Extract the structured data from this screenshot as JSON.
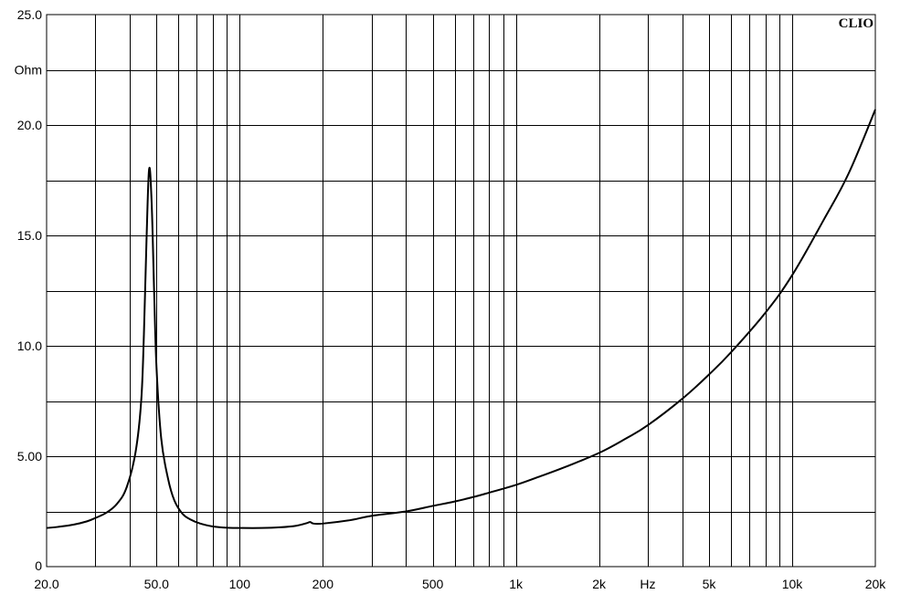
{
  "chart_data": {
    "type": "line",
    "brand": "CLIO",
    "ylabel": "Ohm",
    "xlabel": "Hz",
    "x_scale": "log",
    "xlim": [
      20,
      20000
    ],
    "ylim": [
      0,
      25
    ],
    "grid": true,
    "y_ticks": [
      {
        "value": 25,
        "label": "25.0"
      },
      {
        "value": 20,
        "label": "20.0"
      },
      {
        "value": 15,
        "label": "15.0"
      },
      {
        "value": 10,
        "label": "10.0"
      },
      {
        "value": 5,
        "label": "5.00"
      },
      {
        "value": 0,
        "label": "0"
      }
    ],
    "x_ticks": [
      {
        "value": 20,
        "label": "20.0"
      },
      {
        "value": 50,
        "label": "50.0"
      },
      {
        "value": 100,
        "label": "100"
      },
      {
        "value": 200,
        "label": "200"
      },
      {
        "value": 500,
        "label": "500"
      },
      {
        "value": 1000,
        "label": "1k"
      },
      {
        "value": 2000,
        "label": "2k"
      },
      {
        "value": 5000,
        "label": "5k"
      },
      {
        "value": 10000,
        "label": "10k"
      },
      {
        "value": 20000,
        "label": "20k"
      }
    ],
    "series": [
      {
        "color": "#000000",
        "x": [
          20,
          22,
          25,
          28,
          30,
          33,
          36,
          39,
          42,
          44,
          45,
          46,
          47,
          48,
          49,
          50,
          52,
          55,
          58,
          62,
          66,
          72,
          80,
          90,
          100,
          120,
          140,
          160,
          175,
          180,
          185,
          200,
          250,
          300,
          400,
          500,
          600,
          700,
          800,
          1000,
          1200,
          1500,
          2000,
          2500,
          3000,
          4000,
          5000,
          6000,
          8000,
          10000,
          13000,
          16000,
          20000
        ],
        "y": [
          1.75,
          1.8,
          1.9,
          2.05,
          2.2,
          2.45,
          2.85,
          3.6,
          5.2,
          7.5,
          10.5,
          14.8,
          18.0,
          16.5,
          12.5,
          9.0,
          5.8,
          4.0,
          3.0,
          2.4,
          2.15,
          1.95,
          1.82,
          1.76,
          1.75,
          1.75,
          1.78,
          1.85,
          1.97,
          2.02,
          1.95,
          1.95,
          2.1,
          2.3,
          2.5,
          2.75,
          2.95,
          3.15,
          3.35,
          3.7,
          4.05,
          4.5,
          5.15,
          5.8,
          6.4,
          7.6,
          8.7,
          9.7,
          11.5,
          13.2,
          15.7,
          17.8,
          20.7
        ]
      }
    ]
  }
}
